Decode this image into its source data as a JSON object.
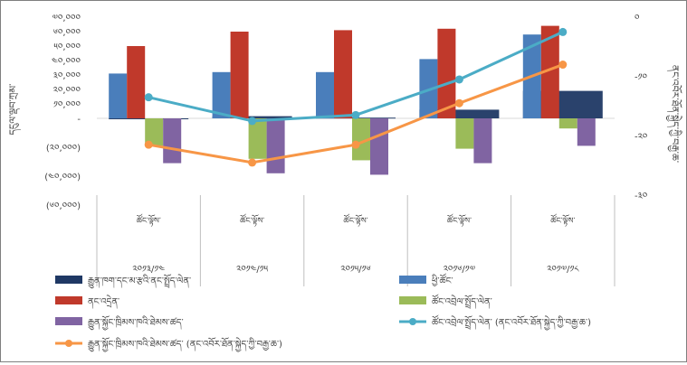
{
  "chart_data": {
    "type": "bar",
    "categories": [
      "༢༠༡༣/༡༤",
      "༢༠༡༤/༡༥",
      "༢༠༡༥/༡༦",
      "༢༠༡༦/༡༧",
      "༢༠༡༧/༡༨"
    ],
    "category_sublabels": [
      "ཚོང་ལྟོས་",
      "ཚོང་ལྟོས་",
      "ཚོང་ལྟོས་",
      "ཚོང་ལྟོས་",
      "ཚོང་ལྟོས་"
    ],
    "ylabel": "དངུལ་ལྡབ་ཀྲམ་",
    "y2label": "ནང་འབོར་ཐོན་སྐྱེད་ཀྱི་བརྒྱ་ཆ་",
    "ylim": [
      -60000,
      70000
    ],
    "y2lim": [
      -30,
      0
    ],
    "y_ticks": [
      {
        "value": 70000,
        "label": "༧༠,༠༠༠"
      },
      {
        "value": 60000,
        "label": "༦༠,༠༠༠"
      },
      {
        "value": 50000,
        "label": "༥༠,༠༠༠"
      },
      {
        "value": 40000,
        "label": "༤༠,༠༠༠"
      },
      {
        "value": 30000,
        "label": "༣༠,༠༠༠"
      },
      {
        "value": 20000,
        "label": "༢༠,༠༠༠"
      },
      {
        "value": 10000,
        "label": "༡༠,༠༠༠"
      },
      {
        "value": 0,
        "label": "-"
      },
      {
        "value": -20000,
        "label": "(༢༠,༠༠༠)"
      },
      {
        "value": -40000,
        "label": "(༤༠,༠༠༠)"
      },
      {
        "value": -60000,
        "label": "(༦༠,༠༠༠)"
      }
    ],
    "y2_ticks": [
      {
        "value": 0,
        "label": "༠"
      },
      {
        "value": -10,
        "label": "-༡༠"
      },
      {
        "value": -20,
        "label": "-༢༠"
      },
      {
        "value": -30,
        "label": "-༣༠"
      }
    ],
    "bar_series": [
      {
        "name": "རྒྱུན་ཁག་དང་མ་རྩའི་ནང་སྤྲོད་ལེན་",
        "color": "#1f3864",
        "values": [
          0,
          1500,
          500,
          6000,
          19000
        ]
      },
      {
        "name": "ཕྱི་ཚོང་",
        "color": "#4a7ebb",
        "values": [
          31000,
          32000,
          32000,
          41000,
          58000
        ]
      },
      {
        "name": "ནང་འདྲེན་",
        "color": "#c0392b",
        "values": [
          50000,
          60000,
          61000,
          62000,
          64000
        ]
      },
      {
        "name": "ཚོང་འབྲེལ་སྤྲོད་ལེན་",
        "color": "#9bbb59",
        "values": [
          -19000,
          -28000,
          -29000,
          -21000,
          -7000
        ]
      },
      {
        "name": "རྒྱུན་སྐྱོང་ཁྲིམས་ཁའི་ཐེམས་ཚད་",
        "color": "#8064a2",
        "values": [
          -31000,
          -38000,
          -39000,
          -31000,
          -19000
        ]
      }
    ],
    "line_series": [
      {
        "name": "ཚོང་འབྲེལ་སྤྲོད་ལེན་ (ནང་འབོར་ཐོན་སྐྱེད་ཀྱི་བརྒྱ་ཆ་)",
        "color": "#4bacc6",
        "values": [
          -13.5,
          -17.5,
          -16.5,
          -10.5,
          -2.5
        ]
      },
      {
        "name": "རྒྱུན་སྐྱོང་ཁྲིམས་ཁའི་ཐེམས་ཚད་ (ནང་འབོར་ཐོན་སྐྱེད་ཀྱི་བརྒྱ་ཆ་)",
        "color": "#f79646",
        "values": [
          -21.5,
          -24.5,
          -21.5,
          -14.5,
          -8
        ]
      }
    ],
    "legend_placement": "bottom",
    "grid": false
  }
}
